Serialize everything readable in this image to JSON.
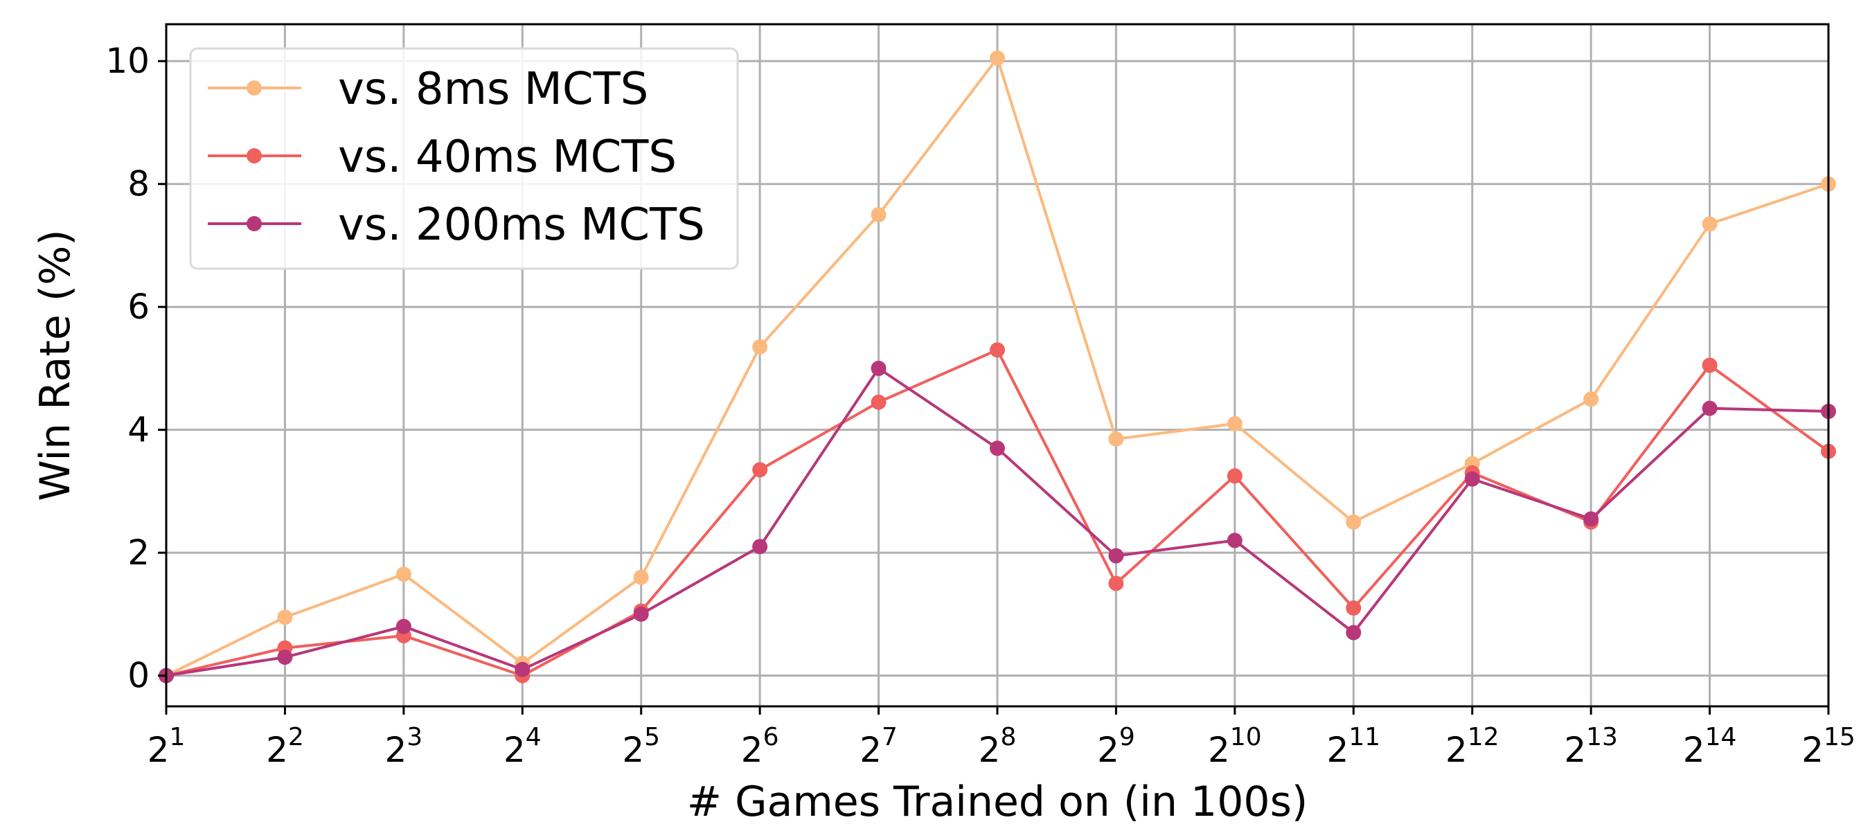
{
  "chart_data": {
    "type": "line",
    "xlabel": "# Games Trained on (in 100s)",
    "ylabel": "Win Rate (%)",
    "x_scale": "log2",
    "x_tick_base": "2",
    "x": [
      1,
      2,
      3,
      4,
      5,
      6,
      7,
      8,
      9,
      10,
      11,
      12,
      13,
      14,
      15
    ],
    "x_tick_exponents": [
      "1",
      "2",
      "3",
      "4",
      "5",
      "6",
      "7",
      "8",
      "9",
      "10",
      "11",
      "12",
      "13",
      "14",
      "15"
    ],
    "xlim": [
      1,
      15
    ],
    "y_ticks": [
      "0",
      "2",
      "4",
      "6",
      "8",
      "10"
    ],
    "ylim": [
      -0.5,
      10.6
    ],
    "grid": true,
    "legend_position": "top-left",
    "series": [
      {
        "name": "vs. 8ms MCTS",
        "color": "#fcb97f",
        "values": [
          0.0,
          0.95,
          1.65,
          0.2,
          1.6,
          5.35,
          7.5,
          10.05,
          3.85,
          4.1,
          2.5,
          3.45,
          4.5,
          7.35,
          8.0
        ]
      },
      {
        "name": "vs. 40ms MCTS",
        "color": "#f0605d",
        "values": [
          0.0,
          0.45,
          0.65,
          0.0,
          1.05,
          3.35,
          4.45,
          5.3,
          1.5,
          3.25,
          1.1,
          3.3,
          2.5,
          5.05,
          3.65
        ]
      },
      {
        "name": "vs. 200ms MCTS",
        "color": "#b83779",
        "values": [
          0.0,
          0.3,
          0.8,
          0.1,
          1.0,
          2.1,
          5.0,
          3.7,
          1.95,
          2.2,
          0.7,
          3.2,
          2.55,
          4.35,
          4.3
        ]
      }
    ]
  }
}
